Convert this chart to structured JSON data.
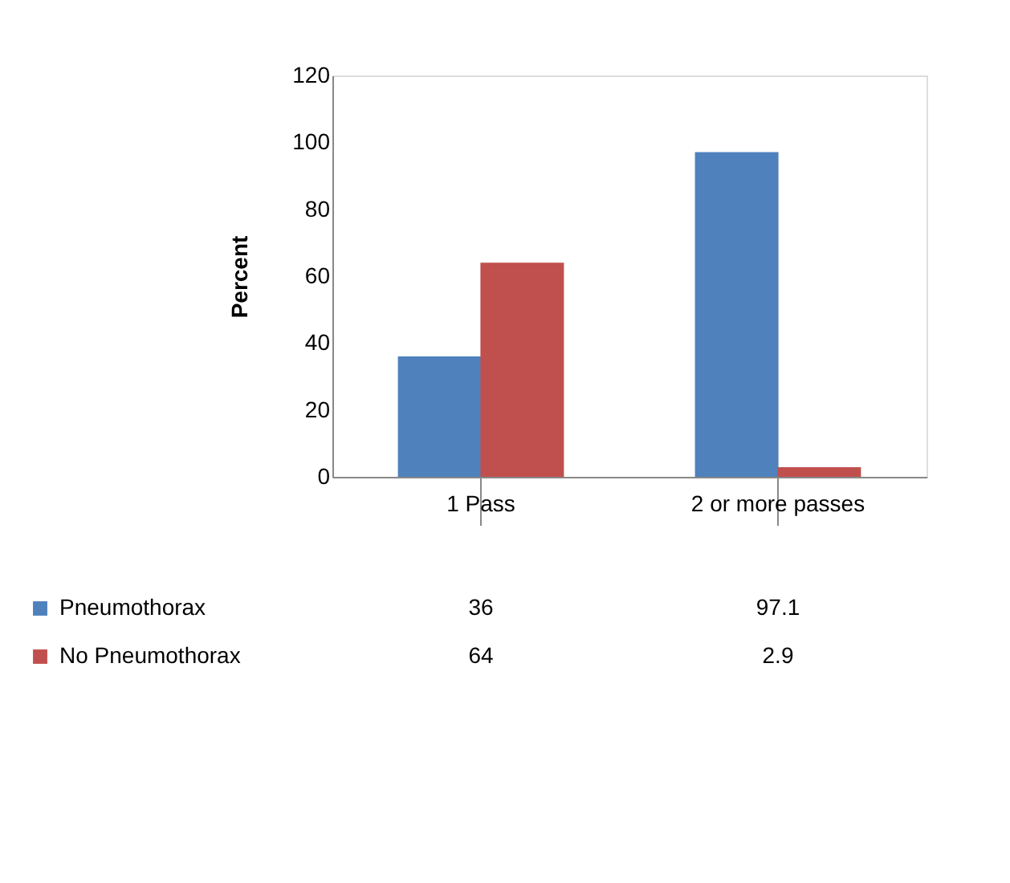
{
  "chart_data": {
    "type": "bar",
    "ylabel": "Percent",
    "categories": [
      "1 Pass",
      "2 or more passes"
    ],
    "series": [
      {
        "name": "Pneumothorax",
        "color": "#4f81bd",
        "values": [
          36,
          97.1
        ]
      },
      {
        "name": "No Pneumothorax",
        "color": "#c0504d",
        "values": [
          64,
          2.9
        ]
      }
    ],
    "ylim": [
      0,
      120
    ],
    "yticks": [
      0,
      20,
      40,
      60,
      80,
      100,
      120
    ],
    "grid": false,
    "data_labels": true,
    "legend": "bottom"
  }
}
